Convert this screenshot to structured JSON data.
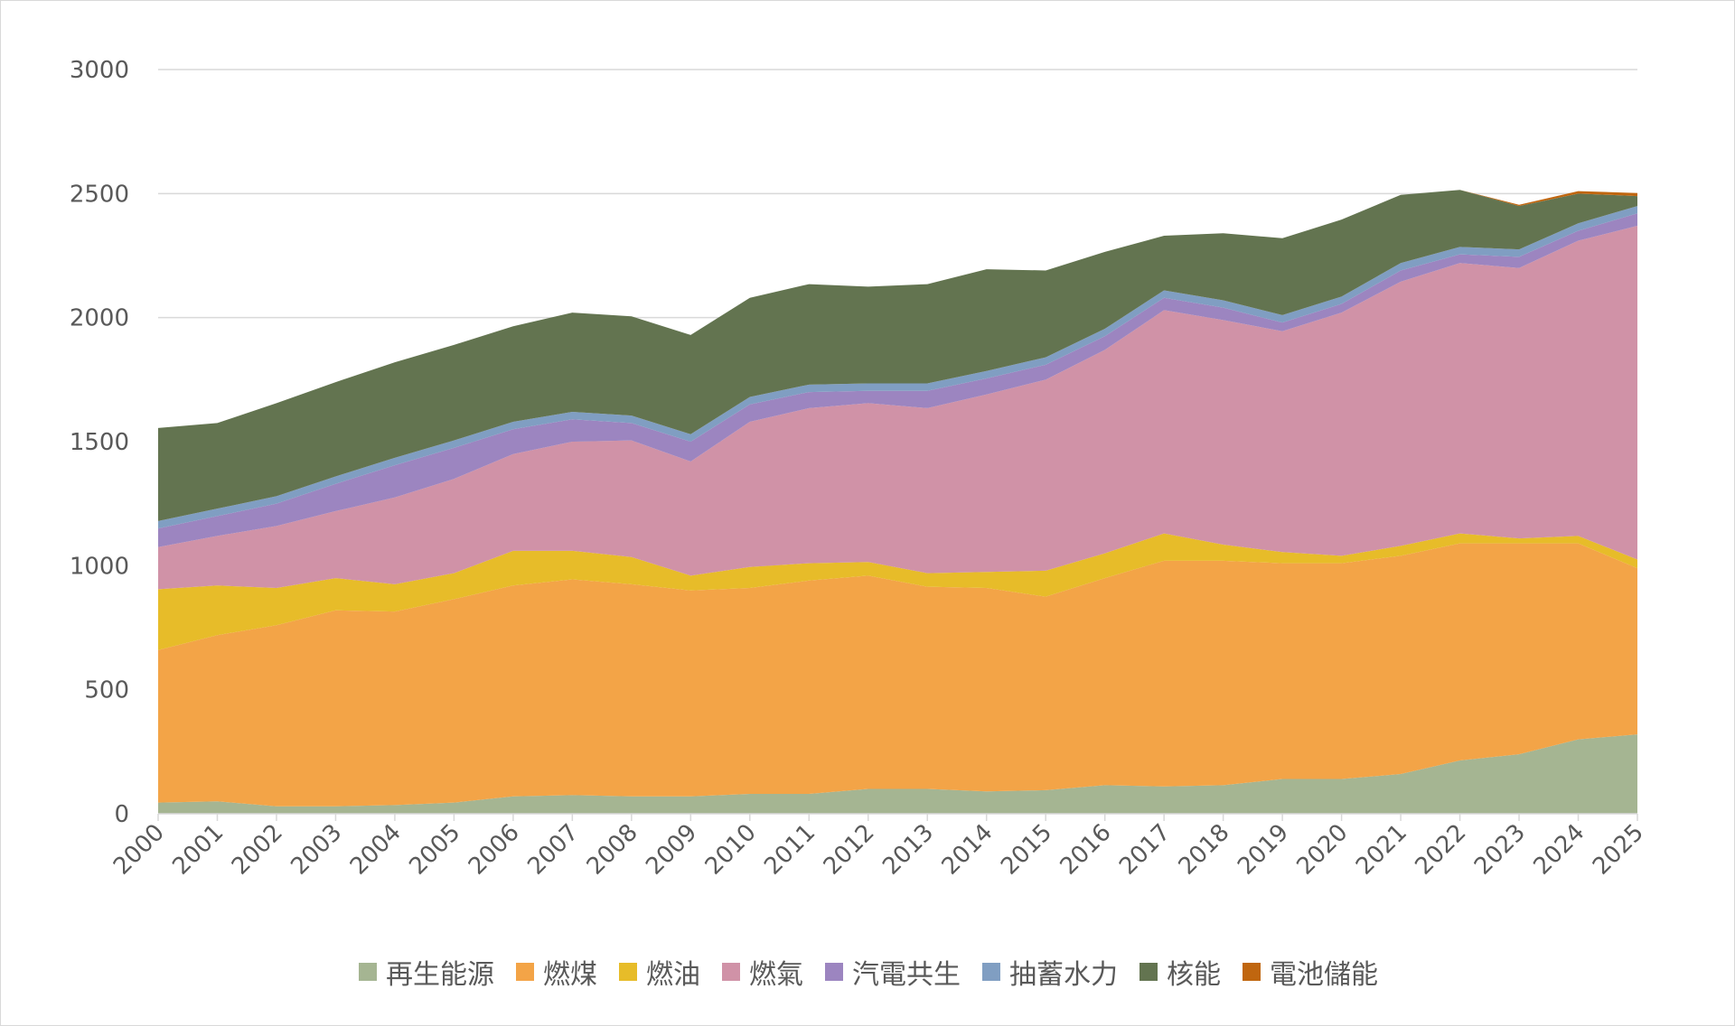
{
  "chart_data": {
    "type": "area",
    "stacked": true,
    "title": "",
    "xlabel": "",
    "ylabel": "",
    "ylim": [
      0,
      3000
    ],
    "yticks": [
      0,
      500,
      1000,
      1500,
      2000,
      2500,
      3000
    ],
    "grid": true,
    "legend_position": "bottom",
    "categories": [
      "2000",
      "2001",
      "2002",
      "2003",
      "2004",
      "2005",
      "2006",
      "2007",
      "2008",
      "2009",
      "2010",
      "2011",
      "2012",
      "2013",
      "2014",
      "2015",
      "2016",
      "2017",
      "2018",
      "2019",
      "2020",
      "2021",
      "2022",
      "2023",
      "2024",
      "2025"
    ],
    "series": [
      {
        "name": "再生能源",
        "color": "#a5b592",
        "values": [
          45,
          50,
          30,
          30,
          35,
          45,
          70,
          75,
          70,
          70,
          80,
          80,
          100,
          100,
          90,
          95,
          115,
          110,
          115,
          140,
          140,
          160,
          215,
          240,
          300,
          320
        ]
      },
      {
        "name": "燃煤",
        "color": "#f3a447",
        "values": [
          615,
          670,
          730,
          790,
          780,
          820,
          850,
          870,
          855,
          830,
          830,
          860,
          860,
          815,
          820,
          780,
          835,
          910,
          905,
          870,
          870,
          880,
          875,
          850,
          790,
          670
        ]
      },
      {
        "name": "燃油",
        "color": "#e7bc29",
        "values": [
          245,
          200,
          150,
          130,
          110,
          105,
          140,
          115,
          110,
          60,
          85,
          70,
          55,
          55,
          65,
          105,
          100,
          110,
          65,
          45,
          30,
          40,
          40,
          20,
          30,
          35
        ]
      },
      {
        "name": "燃氣",
        "color": "#d092a7",
        "values": [
          170,
          200,
          250,
          270,
          350,
          380,
          390,
          440,
          470,
          460,
          585,
          625,
          640,
          665,
          715,
          770,
          820,
          900,
          905,
          890,
          980,
          1065,
          1090,
          1090,
          1190,
          1345
        ]
      },
      {
        "name": "汽電共生",
        "color": "#9c85c0",
        "values": [
          75,
          80,
          90,
          110,
          130,
          125,
          100,
          90,
          70,
          80,
          70,
          65,
          50,
          70,
          65,
          60,
          55,
          50,
          50,
          35,
          35,
          45,
          35,
          45,
          40,
          50
        ]
      },
      {
        "name": "抽蓄水力",
        "color": "#809ec2",
        "values": [
          30,
          30,
          30,
          30,
          30,
          30,
          30,
          30,
          30,
          30,
          30,
          30,
          30,
          30,
          30,
          30,
          30,
          30,
          30,
          30,
          30,
          30,
          30,
          30,
          30,
          30
        ]
      },
      {
        "name": "核能",
        "color": "#637450",
        "values": [
          375,
          345,
          375,
          380,
          385,
          385,
          385,
          400,
          400,
          400,
          400,
          405,
          390,
          400,
          410,
          350,
          310,
          220,
          270,
          310,
          310,
          275,
          230,
          175,
          120,
          40
        ]
      },
      {
        "name": "電池儲能",
        "color": "#c0660f",
        "values": [
          0,
          0,
          0,
          0,
          0,
          0,
          0,
          0,
          0,
          0,
          0,
          0,
          0,
          0,
          0,
          0,
          0,
          0,
          0,
          0,
          0,
          0,
          0,
          5,
          10,
          12
        ]
      }
    ]
  }
}
